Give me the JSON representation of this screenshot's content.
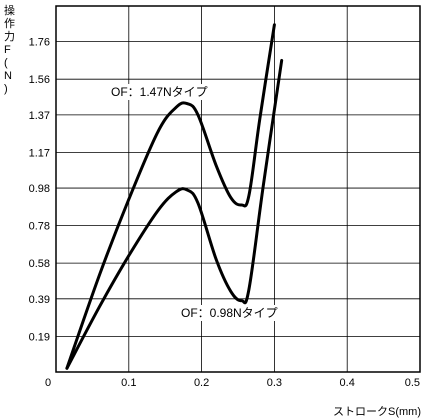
{
  "chart_data": {
    "type": "line",
    "ylabel": "操作力F(N)",
    "xlabel": "ストロークS(mm)",
    "xlim": [
      0,
      0.5
    ],
    "ylim": [
      0,
      1.95
    ],
    "xticks": [
      0,
      0.1,
      0.2,
      0.3,
      0.4,
      0.5
    ],
    "xtick_labels": [
      "0",
      "0.1",
      "0.2",
      "0.3",
      "0.4",
      "0.5"
    ],
    "yticks": [
      0.19,
      0.39,
      0.58,
      0.78,
      0.98,
      1.17,
      1.37,
      1.56,
      1.76
    ],
    "ytick_labels": [
      "0.19",
      "0.39",
      "0.58",
      "0.78",
      "0.98",
      "1.17",
      "1.37",
      "1.56",
      "1.76"
    ],
    "grid": true,
    "series": [
      {
        "name": "OF：1.47Nタイプ",
        "x": [
          0.015,
          0.06,
          0.1,
          0.14,
          0.165,
          0.18,
          0.195,
          0.22,
          0.24,
          0.255,
          0.265,
          0.28,
          0.3
        ],
        "y": [
          0.02,
          0.52,
          0.92,
          1.28,
          1.41,
          1.43,
          1.37,
          1.1,
          0.93,
          0.89,
          0.94,
          1.35,
          1.85
        ]
      },
      {
        "name": "OF：0.98Nタイプ",
        "x": [
          0.015,
          0.06,
          0.1,
          0.14,
          0.165,
          0.18,
          0.195,
          0.22,
          0.24,
          0.255,
          0.265,
          0.285,
          0.31
        ],
        "y": [
          0.02,
          0.35,
          0.62,
          0.86,
          0.96,
          0.97,
          0.9,
          0.6,
          0.43,
          0.38,
          0.44,
          1.0,
          1.66
        ]
      }
    ]
  }
}
